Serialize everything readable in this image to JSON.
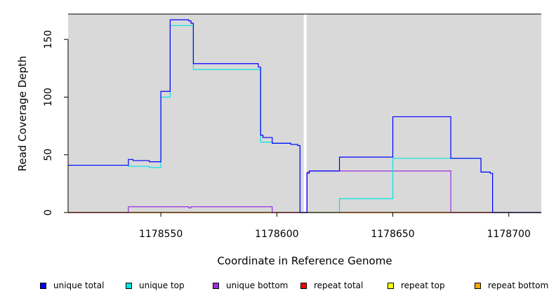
{
  "chart_data": {
    "type": "line",
    "style": "step",
    "xlabel": "Coordinate in Reference Genome",
    "ylabel": "Read Coverage Depth",
    "xlim": [
      1178510,
      1178714
    ],
    "ylim": [
      0,
      172
    ],
    "xticks": [
      1178550,
      1178600,
      1178650,
      1178700
    ],
    "yticks": [
      0,
      50,
      100,
      150
    ],
    "background": "#d9d9d9",
    "gap": [
      1178611,
      1178613
    ],
    "series": [
      {
        "name": "unique total",
        "color": "#0000ff",
        "points": [
          [
            1178510,
            41
          ],
          [
            1178536,
            41
          ],
          [
            1178536,
            46
          ],
          [
            1178538,
            46
          ],
          [
            1178538,
            45
          ],
          [
            1178545,
            45
          ],
          [
            1178545,
            44
          ],
          [
            1178550,
            44
          ],
          [
            1178550,
            105
          ],
          [
            1178554,
            105
          ],
          [
            1178554,
            167
          ],
          [
            1178562,
            167
          ],
          [
            1178562,
            166
          ],
          [
            1178563,
            166
          ],
          [
            1178563,
            164
          ],
          [
            1178564,
            164
          ],
          [
            1178564,
            129
          ],
          [
            1178592,
            129
          ],
          [
            1178592,
            126
          ],
          [
            1178593,
            126
          ],
          [
            1178593,
            67
          ],
          [
            1178594,
            67
          ],
          [
            1178594,
            65
          ],
          [
            1178598,
            65
          ],
          [
            1178598,
            60
          ],
          [
            1178606,
            60
          ],
          [
            1178606,
            59
          ],
          [
            1178609,
            59
          ],
          [
            1178609,
            58
          ],
          [
            1178610,
            58
          ],
          [
            1178610,
            0
          ],
          [
            1178611,
            0
          ],
          [
            1178613,
            0
          ],
          [
            1178613,
            34
          ],
          [
            1178614,
            34
          ],
          [
            1178614,
            36
          ],
          [
            1178627,
            36
          ],
          [
            1178627,
            48
          ],
          [
            1178650,
            48
          ],
          [
            1178650,
            83
          ],
          [
            1178675,
            83
          ],
          [
            1178675,
            47
          ],
          [
            1178688,
            47
          ],
          [
            1178688,
            35
          ],
          [
            1178692,
            35
          ],
          [
            1178692,
            34
          ],
          [
            1178693,
            34
          ],
          [
            1178693,
            0
          ],
          [
            1178714,
            0
          ]
        ]
      },
      {
        "name": "unique top",
        "color": "#00e5e5",
        "points": [
          [
            1178510,
            41
          ],
          [
            1178536,
            41
          ],
          [
            1178536,
            40
          ],
          [
            1178545,
            40
          ],
          [
            1178545,
            39
          ],
          [
            1178550,
            39
          ],
          [
            1178550,
            100
          ],
          [
            1178554,
            100
          ],
          [
            1178554,
            162
          ],
          [
            1178564,
            162
          ],
          [
            1178564,
            124
          ],
          [
            1178593,
            124
          ],
          [
            1178593,
            61
          ],
          [
            1178598,
            61
          ],
          [
            1178598,
            60
          ],
          [
            1178606,
            60
          ],
          [
            1178606,
            59
          ],
          [
            1178609,
            59
          ],
          [
            1178609,
            58
          ],
          [
            1178610,
            58
          ],
          [
            1178610,
            0
          ],
          [
            1178611,
            0
          ],
          [
            1178613,
            0
          ],
          [
            1178627,
            0
          ],
          [
            1178627,
            12
          ],
          [
            1178650,
            12
          ],
          [
            1178650,
            47
          ],
          [
            1178688,
            47
          ],
          [
            1178688,
            35
          ],
          [
            1178692,
            35
          ],
          [
            1178692,
            34
          ],
          [
            1178693,
            34
          ],
          [
            1178693,
            0
          ],
          [
            1178714,
            0
          ]
        ]
      },
      {
        "name": "unique bottom",
        "color": "#9a30e0",
        "points": [
          [
            1178510,
            0
          ],
          [
            1178536,
            0
          ],
          [
            1178536,
            5
          ],
          [
            1178562,
            5
          ],
          [
            1178562,
            4
          ],
          [
            1178563,
            4
          ],
          [
            1178563,
            5
          ],
          [
            1178598,
            5
          ],
          [
            1178598,
            0
          ],
          [
            1178611,
            0
          ],
          [
            1178613,
            0
          ],
          [
            1178613,
            35
          ],
          [
            1178614,
            35
          ],
          [
            1178614,
            36
          ],
          [
            1178675,
            36
          ],
          [
            1178675,
            0
          ],
          [
            1178714,
            0
          ]
        ]
      },
      {
        "name": "repeat total",
        "color": "#ff0000",
        "points": [
          [
            1178510,
            0
          ],
          [
            1178714,
            0
          ]
        ]
      },
      {
        "name": "repeat top",
        "color": "#ffff00",
        "points": [
          [
            1178510,
            0
          ],
          [
            1178714,
            0
          ]
        ]
      },
      {
        "name": "repeat bottom",
        "color": "#ffa500",
        "points": [
          [
            1178510,
            0
          ],
          [
            1178714,
            0
          ]
        ]
      }
    ]
  }
}
